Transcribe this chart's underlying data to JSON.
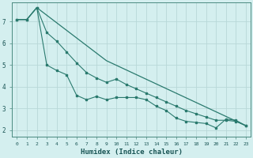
{
  "xlabel": "Humidex (Indice chaleur)",
  "bg_color": "#d4efef",
  "grid_color": "#b8d8d8",
  "line_color": "#2a7a6e",
  "xlim": [
    -0.5,
    23.5
  ],
  "ylim": [
    1.7,
    7.9
  ],
  "yticks": [
    2,
    3,
    4,
    5,
    6,
    7
  ],
  "xticks": [
    0,
    1,
    2,
    3,
    4,
    5,
    6,
    7,
    8,
    9,
    10,
    11,
    12,
    13,
    14,
    15,
    16,
    17,
    18,
    19,
    20,
    21,
    22,
    23
  ],
  "line1_x": [
    0,
    1,
    2,
    3,
    4,
    5,
    6,
    7,
    8,
    9,
    10,
    11,
    12,
    13,
    14,
    15,
    16,
    17,
    18,
    19,
    20,
    21,
    22,
    23
  ],
  "line1_y": [
    7.1,
    7.1,
    7.65,
    5.0,
    4.75,
    4.55,
    3.6,
    3.4,
    3.55,
    3.4,
    3.5,
    3.5,
    3.5,
    3.4,
    3.1,
    2.9,
    2.55,
    2.4,
    2.35,
    2.3,
    2.1,
    2.5,
    2.45,
    2.2
  ],
  "line2_x": [
    0,
    1,
    2,
    3,
    4,
    5,
    6,
    7,
    8,
    9,
    10,
    11,
    12,
    13,
    14,
    15,
    16,
    17,
    18,
    19,
    20,
    21,
    22,
    23
  ],
  "line2_y": [
    7.1,
    7.1,
    7.65,
    6.5,
    6.1,
    5.6,
    5.1,
    4.65,
    4.4,
    4.2,
    4.35,
    4.1,
    3.9,
    3.7,
    3.5,
    3.3,
    3.1,
    2.9,
    2.75,
    2.6,
    2.45,
    2.45,
    2.4,
    2.2
  ],
  "line3_x": [
    0,
    1,
    2,
    9,
    23
  ],
  "line3_y": [
    7.1,
    7.1,
    7.65,
    5.2,
    2.2
  ]
}
